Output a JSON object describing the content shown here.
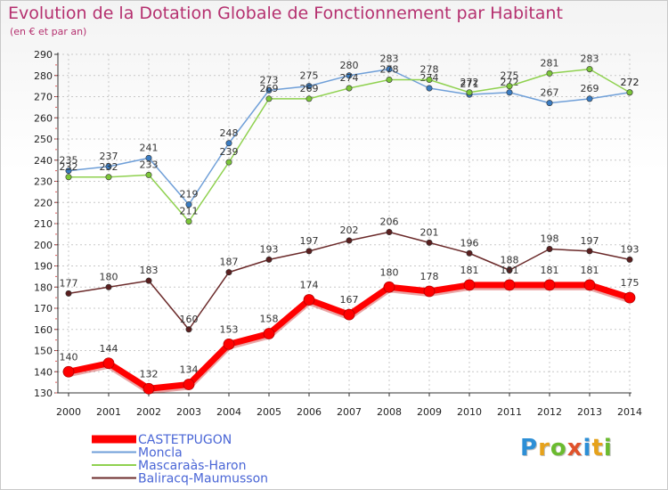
{
  "header": {
    "title": "Evolution de la Dotation Globale de Fonctionnement par Habitant",
    "subtitle": "(en € et par an)"
  },
  "logo": {
    "text": "Proxiti"
  },
  "colors": {
    "axis": "#333333",
    "grid": "#c8c8c8",
    "title": "#b5306f",
    "legend_text": "#4a66d6"
  },
  "chart_data": {
    "type": "line",
    "title": "Evolution de la Dotation Globale de Fonctionnement par Habitant",
    "subtitle": "(en € et par an)",
    "xlabel": "",
    "ylabel": "",
    "x": [
      "2000",
      "2001",
      "2002",
      "2003",
      "2004",
      "2005",
      "2006",
      "2007",
      "2008",
      "2009",
      "2010",
      "2011",
      "2012",
      "2013",
      "2014"
    ],
    "ylim": [
      130,
      290
    ],
    "yticks": [
      130,
      140,
      150,
      160,
      170,
      180,
      190,
      200,
      210,
      220,
      230,
      240,
      250,
      260,
      270,
      280,
      290
    ],
    "grid": true,
    "legend_position": "bottom-left",
    "series": [
      {
        "name": "CASTETPUGON",
        "color": "#ff0000",
        "marker_color": "#ff0000",
        "emphasis": true,
        "values": [
          140,
          144,
          132,
          134,
          153,
          158,
          174,
          167,
          180,
          178,
          181,
          181,
          181,
          181,
          175
        ]
      },
      {
        "name": "Moncla",
        "color": "#6f9fd8",
        "marker_color": "#3a7cc2",
        "emphasis": false,
        "values": [
          235,
          237,
          241,
          219,
          248,
          273,
          275,
          280,
          283,
          274,
          271,
          272,
          267,
          269,
          272
        ]
      },
      {
        "name": "Mascaraàs-Haron",
        "color": "#8fd14f",
        "marker_color": "#7cc63a",
        "emphasis": false,
        "values": [
          232,
          232,
          233,
          211,
          239,
          269,
          269,
          274,
          278,
          278,
          272,
          275,
          281,
          283,
          272
        ]
      },
      {
        "name": "Baliracq-Maumusson",
        "color": "#6b2a2a",
        "marker_color": "#5a1f1f",
        "emphasis": false,
        "values": [
          177,
          180,
          183,
          160,
          187,
          193,
          197,
          202,
          206,
          201,
          196,
          188,
          198,
          197,
          193
        ]
      }
    ]
  }
}
